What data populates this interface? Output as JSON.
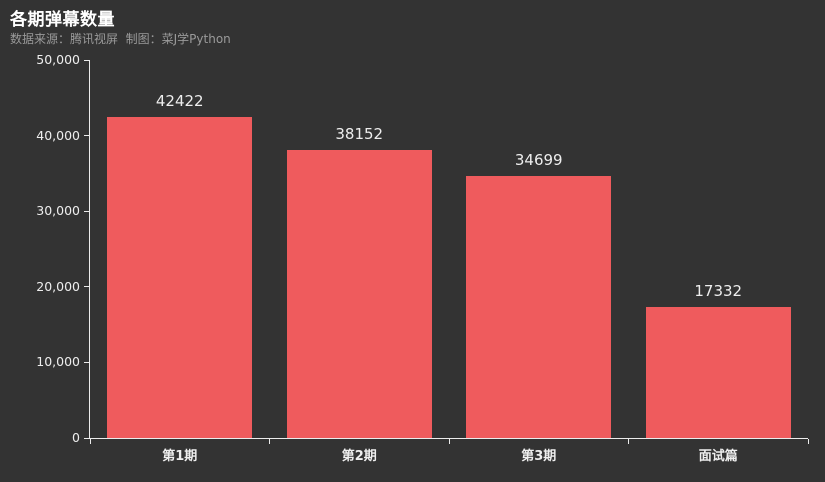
{
  "header": {
    "title": "各期弹幕数量",
    "subtitle": "数据来源：腾讯视屏  制图：菜J学Python"
  },
  "colors": {
    "background": "#333333",
    "bar": "#ef5b5d",
    "axis": "#ececec",
    "title_text": "#ffffff",
    "subtitle_text": "#9a9a9a",
    "label_text": "#eeeeee"
  },
  "chart_data": {
    "type": "bar",
    "title": "各期弹幕数量",
    "subtitle": "数据来源：腾讯视屏  制图：菜J学Python",
    "categories": [
      "第1期",
      "第2期",
      "第3期",
      "面试篇"
    ],
    "values": [
      42422,
      38152,
      34699,
      17332
    ],
    "bar_labels": [
      "42422",
      "38152",
      "34699",
      "17332"
    ],
    "xlabel": "",
    "ylabel": "",
    "ylim": [
      0,
      50000
    ],
    "yticks": [
      0,
      10000,
      20000,
      30000,
      40000,
      50000
    ],
    "ytick_labels": [
      "0",
      "10,000",
      "20,000",
      "30,000",
      "40,000",
      "50,000"
    ],
    "grid": false,
    "legend_position": "none",
    "bar_color": "#ef5b5d"
  }
}
